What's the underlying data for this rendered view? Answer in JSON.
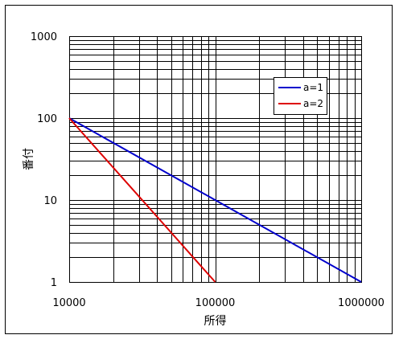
{
  "chart_data": {
    "type": "line",
    "xscale": "log",
    "yscale": "log",
    "xlim": [
      10000,
      1000000
    ],
    "ylim": [
      1,
      1000
    ],
    "xlabel": "所得",
    "ylabel": "番付",
    "x_ticks": [
      "10000",
      "100000",
      "1000000"
    ],
    "y_ticks": [
      "1",
      "10",
      "100",
      "1000"
    ],
    "grid": true,
    "legend_position": "top-right",
    "series": [
      {
        "name": "a=1",
        "color": "#0000cc",
        "x": [
          10000,
          1000000
        ],
        "y": [
          100,
          1
        ]
      },
      {
        "name": "a=2",
        "color": "#dd0000",
        "x": [
          10000,
          100000
        ],
        "y": [
          100,
          1
        ]
      }
    ]
  }
}
